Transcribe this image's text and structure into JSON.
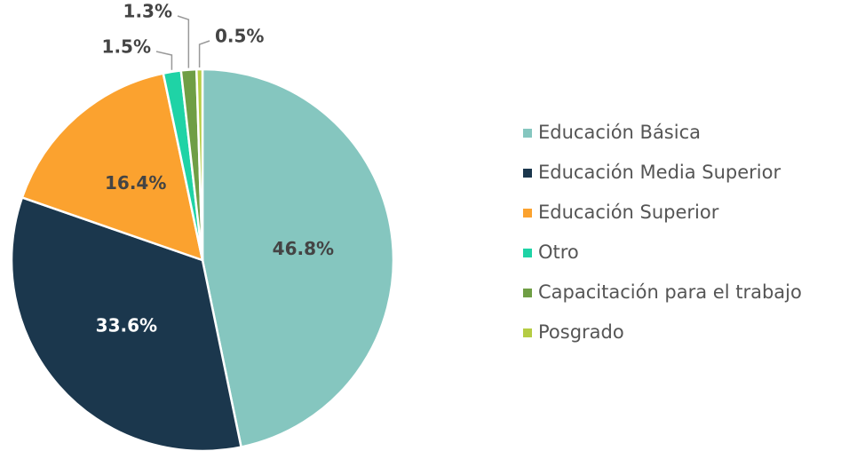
{
  "chart_data": {
    "type": "pie",
    "categories": [
      "Educación Básica",
      "Educación Media Superior",
      "Educación Superior",
      "Otro",
      "Capacitación para el trabajo",
      "Posgrado"
    ],
    "values": [
      46.8,
      33.6,
      16.4,
      1.5,
      1.3,
      0.5
    ],
    "value_labels": [
      "46.8%",
      "33.6%",
      "16.4%",
      "1.5%",
      "1.3%",
      "0.5%"
    ],
    "colors": [
      "#85c6bf",
      "#1b374d",
      "#fba22f",
      "#1fd3a6",
      "#6f9e45",
      "#b5cc44"
    ],
    "legend": "right"
  }
}
